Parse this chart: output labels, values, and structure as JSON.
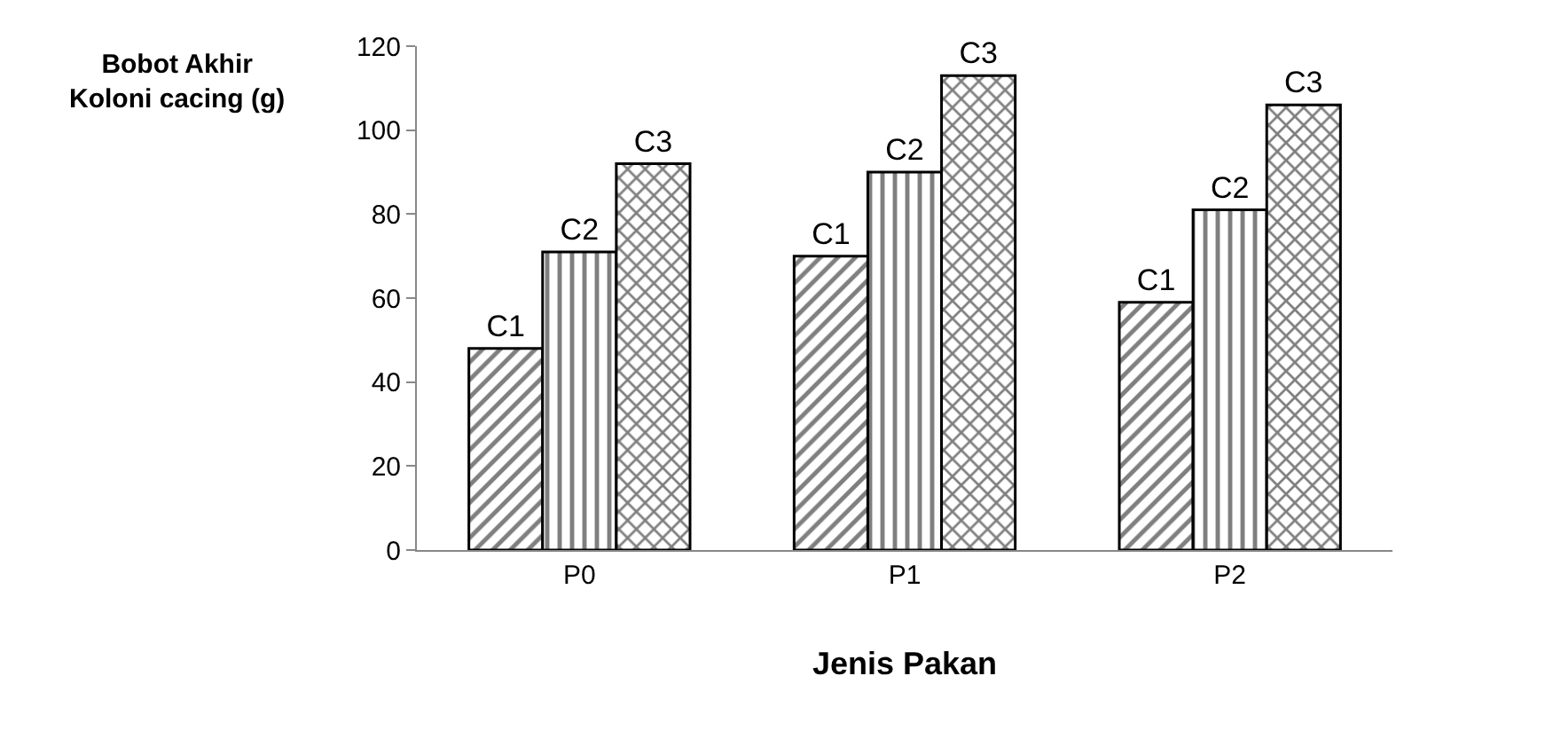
{
  "chart_data": {
    "type": "bar",
    "xlabel": "Jenis Pakan",
    "annotations": [
      "Bobot Akhir\nKoloni cacing (g)"
    ],
    "categories": [
      "P0",
      "P1",
      "P2"
    ],
    "series": [
      {
        "name": "C1",
        "color": "#000000",
        "values": [
          48,
          70,
          59
        ]
      },
      {
        "name": "C2",
        "color": "#000000",
        "values": [
          71,
          90,
          81
        ]
      },
      {
        "name": "C3",
        "color": "#000000",
        "values": [
          92,
          113,
          106
        ]
      }
    ],
    "ylim": [
      0,
      120
    ],
    "yticks": [
      0,
      20,
      40,
      60,
      80,
      100,
      120
    ],
    "legend": false
  }
}
